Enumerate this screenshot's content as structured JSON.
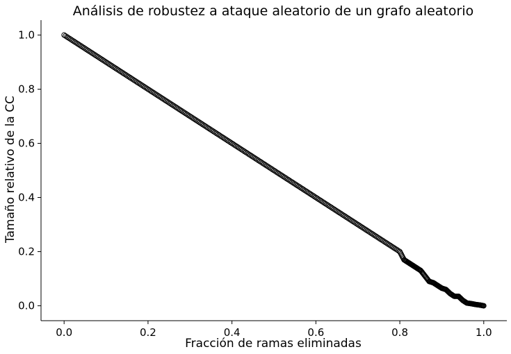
{
  "chart_data": {
    "type": "scatter",
    "title": "Análisis de robustez a ataque aleatorio de un grafo aleatorio",
    "xlabel": "Fracción de ramas eliminadas",
    "ylabel": "Tamaño relativo de la CC",
    "xlim": [
      -0.055,
      1.055
    ],
    "ylim": [
      -0.055,
      1.055
    ],
    "xticks": [
      0.0,
      0.2,
      0.4,
      0.6,
      0.8,
      1.0
    ],
    "xtick_labels": [
      "0.0",
      "0.2",
      "0.4",
      "0.6",
      "0.8",
      "1.0"
    ],
    "yticks": [
      0.0,
      0.2,
      0.4,
      0.6,
      0.8,
      1.0
    ],
    "ytick_labels": [
      "0.0",
      "0.2",
      "0.4",
      "0.6",
      "0.8",
      "1.0"
    ],
    "grid": false,
    "marker": "hollow-circle",
    "marker_color": "#000000",
    "series": [
      {
        "x": [
          0.0,
          0.02,
          0.04,
          0.06,
          0.08,
          0.1,
          0.12,
          0.14,
          0.16,
          0.18,
          0.2,
          0.22,
          0.24,
          0.26,
          0.28,
          0.3,
          0.32,
          0.34,
          0.36,
          0.38,
          0.4,
          0.42,
          0.44,
          0.46,
          0.48,
          0.5,
          0.52,
          0.54,
          0.56,
          0.58,
          0.6,
          0.62,
          0.64,
          0.66,
          0.68,
          0.7,
          0.72,
          0.74,
          0.76,
          0.78,
          0.8,
          0.81,
          0.82,
          0.83,
          0.84,
          0.85,
          0.86,
          0.87,
          0.88,
          0.89,
          0.9,
          0.91,
          0.92,
          0.93,
          0.94,
          0.95,
          0.96,
          0.97,
          0.98,
          0.99,
          1.0
        ],
        "y": [
          1.0,
          0.98,
          0.96,
          0.94,
          0.92,
          0.9,
          0.88,
          0.86,
          0.84,
          0.82,
          0.8,
          0.78,
          0.76,
          0.74,
          0.72,
          0.7,
          0.68,
          0.66,
          0.64,
          0.62,
          0.6,
          0.58,
          0.56,
          0.54,
          0.52,
          0.5,
          0.48,
          0.46,
          0.44,
          0.42,
          0.4,
          0.38,
          0.36,
          0.34,
          0.32,
          0.3,
          0.28,
          0.26,
          0.24,
          0.22,
          0.2,
          0.17,
          0.16,
          0.15,
          0.14,
          0.13,
          0.11,
          0.09,
          0.085,
          0.075,
          0.065,
          0.06,
          0.045,
          0.035,
          0.035,
          0.02,
          0.01,
          0.008,
          0.005,
          0.003,
          0.0
        ]
      }
    ]
  }
}
